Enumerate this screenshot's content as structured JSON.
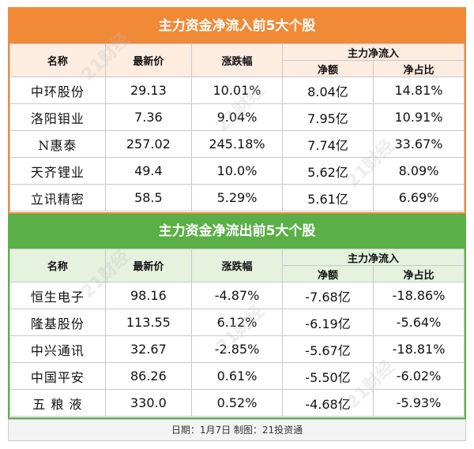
{
  "inflow": {
    "title": "主力资金净流入前5大个股",
    "headers": {
      "name": "名称",
      "price": "最新价",
      "change": "涨跌幅",
      "group": "主力净流入",
      "net": "净额",
      "ratio": "净占比"
    },
    "rows": [
      {
        "name": "中环股份",
        "price": "29.13",
        "change": "10.01%",
        "net": "8.04亿",
        "ratio": "14.81%"
      },
      {
        "name": "洛阳钼业",
        "price": "7.36",
        "change": "9.04%",
        "net": "7.95亿",
        "ratio": "10.91%"
      },
      {
        "name": "N惠泰",
        "price": "257.02",
        "change": "245.18%",
        "net": "7.74亿",
        "ratio": "33.67%"
      },
      {
        "name": "天齐锂业",
        "price": "49.4",
        "change": "10.0%",
        "net": "5.62亿",
        "ratio": "8.09%"
      },
      {
        "name": "立讯精密",
        "price": "58.5",
        "change": "5.29%",
        "net": "5.61亿",
        "ratio": "6.69%"
      }
    ]
  },
  "outflow": {
    "title": "主力资金净流出前5大个股",
    "headers": {
      "name": "名称",
      "price": "最新价",
      "change": "涨跌幅",
      "group": "主力净流入",
      "net": "净额",
      "ratio": "净占比"
    },
    "rows": [
      {
        "name": "恒生电子",
        "price": "98.16",
        "change": "-4.87%",
        "net": "-7.68亿",
        "ratio": "-18.86%"
      },
      {
        "name": "隆基股份",
        "price": "113.55",
        "change": "6.12%",
        "net": "-6.19亿",
        "ratio": "-5.64%"
      },
      {
        "name": "中兴通讯",
        "price": "32.67",
        "change": "-2.85%",
        "net": "-5.67亿",
        "ratio": "-18.81%"
      },
      {
        "name": "中国平安",
        "price": "86.26",
        "change": "0.61%",
        "net": "-5.50亿",
        "ratio": "-6.02%"
      },
      {
        "name": "五 粮 液",
        "price": "330.0",
        "change": "0.52%",
        "net": "-4.68亿",
        "ratio": "-5.93%"
      }
    ]
  },
  "footer": {
    "text": "日期：1月7日 制图：21投资通"
  },
  "watermark": {
    "text": "21财经"
  },
  "colors": {
    "inflow_accent": "#f08a37",
    "outflow_accent": "#5ab046"
  }
}
